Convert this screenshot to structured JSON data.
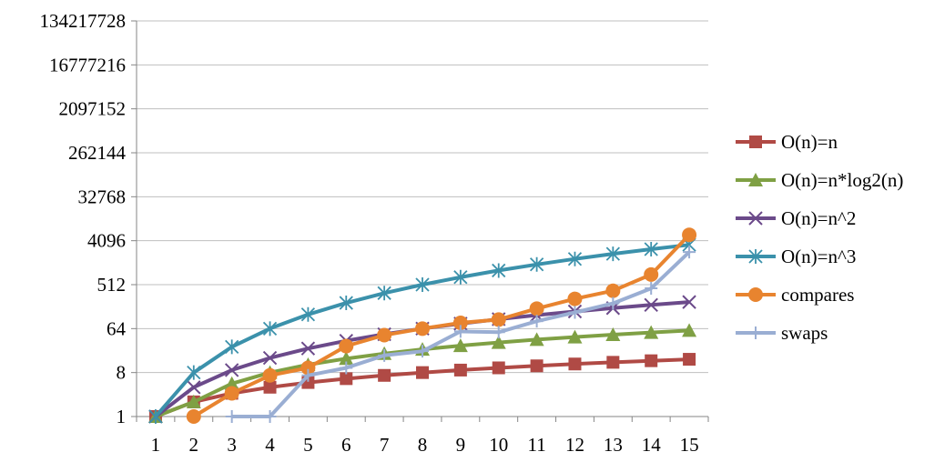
{
  "chart_data": {
    "type": "line",
    "title": "",
    "xlabel": "",
    "ylabel": "",
    "y_scale": "log2",
    "ylim": [
      1,
      134217728
    ],
    "y_ticks": [
      "1",
      "8",
      "64",
      "512",
      "4096",
      "32768",
      "262144",
      "2097152",
      "16777216",
      "134217728"
    ],
    "y_tick_values": [
      1,
      8,
      64,
      512,
      4096,
      32768,
      262144,
      2097152,
      16777216,
      134217728
    ],
    "x": [
      1,
      2,
      3,
      4,
      5,
      6,
      7,
      8,
      9,
      10,
      11,
      12,
      13,
      14,
      15
    ],
    "x_tick_labels": [
      "1",
      "2",
      "3",
      "4",
      "5",
      "6",
      "7",
      "8",
      "9",
      "10",
      "11",
      "12",
      "13",
      "14",
      "15"
    ],
    "grid": "horizontal",
    "legend_position": "right",
    "series": [
      {
        "name": "O(n)=n",
        "color": "#b04a45",
        "marker": "square",
        "values": [
          1,
          2,
          3,
          4,
          5,
          6,
          7,
          8,
          9,
          10,
          11,
          12,
          13,
          14,
          15
        ]
      },
      {
        "name": "O(n)=n*log2(n)",
        "color": "#7fa044",
        "marker": "triangle",
        "values": [
          1,
          2,
          4.75,
          8,
          11.61,
          15.51,
          19.65,
          24,
          28.53,
          33.22,
          38.05,
          43.02,
          48.11,
          53.3,
          58.6
        ]
      },
      {
        "name": "O(n)=n^2",
        "color": "#6b4a8a",
        "marker": "x",
        "values": [
          1,
          4,
          9,
          16,
          25,
          36,
          49,
          64,
          81,
          100,
          121,
          144,
          169,
          196,
          225
        ]
      },
      {
        "name": "O(n)=n^3",
        "color": "#3b91ab",
        "marker": "star",
        "values": [
          1,
          8,
          27,
          64,
          125,
          216,
          343,
          512,
          729,
          1000,
          1331,
          1728,
          2197,
          2744,
          3375
        ]
      },
      {
        "name": "compares",
        "color": "#e8842f",
        "marker": "circle",
        "values": [
          null,
          1,
          3,
          7,
          10,
          28,
          47,
          64,
          84,
          98,
          165,
          262,
          383,
          826,
          5408
        ]
      },
      {
        "name": "swaps",
        "color": "#9aaed3",
        "marker": "plus",
        "values": [
          null,
          null,
          1,
          1,
          7,
          10,
          18,
          22,
          56,
          54,
          91,
          138,
          211,
          430,
          2400
        ]
      }
    ]
  }
}
